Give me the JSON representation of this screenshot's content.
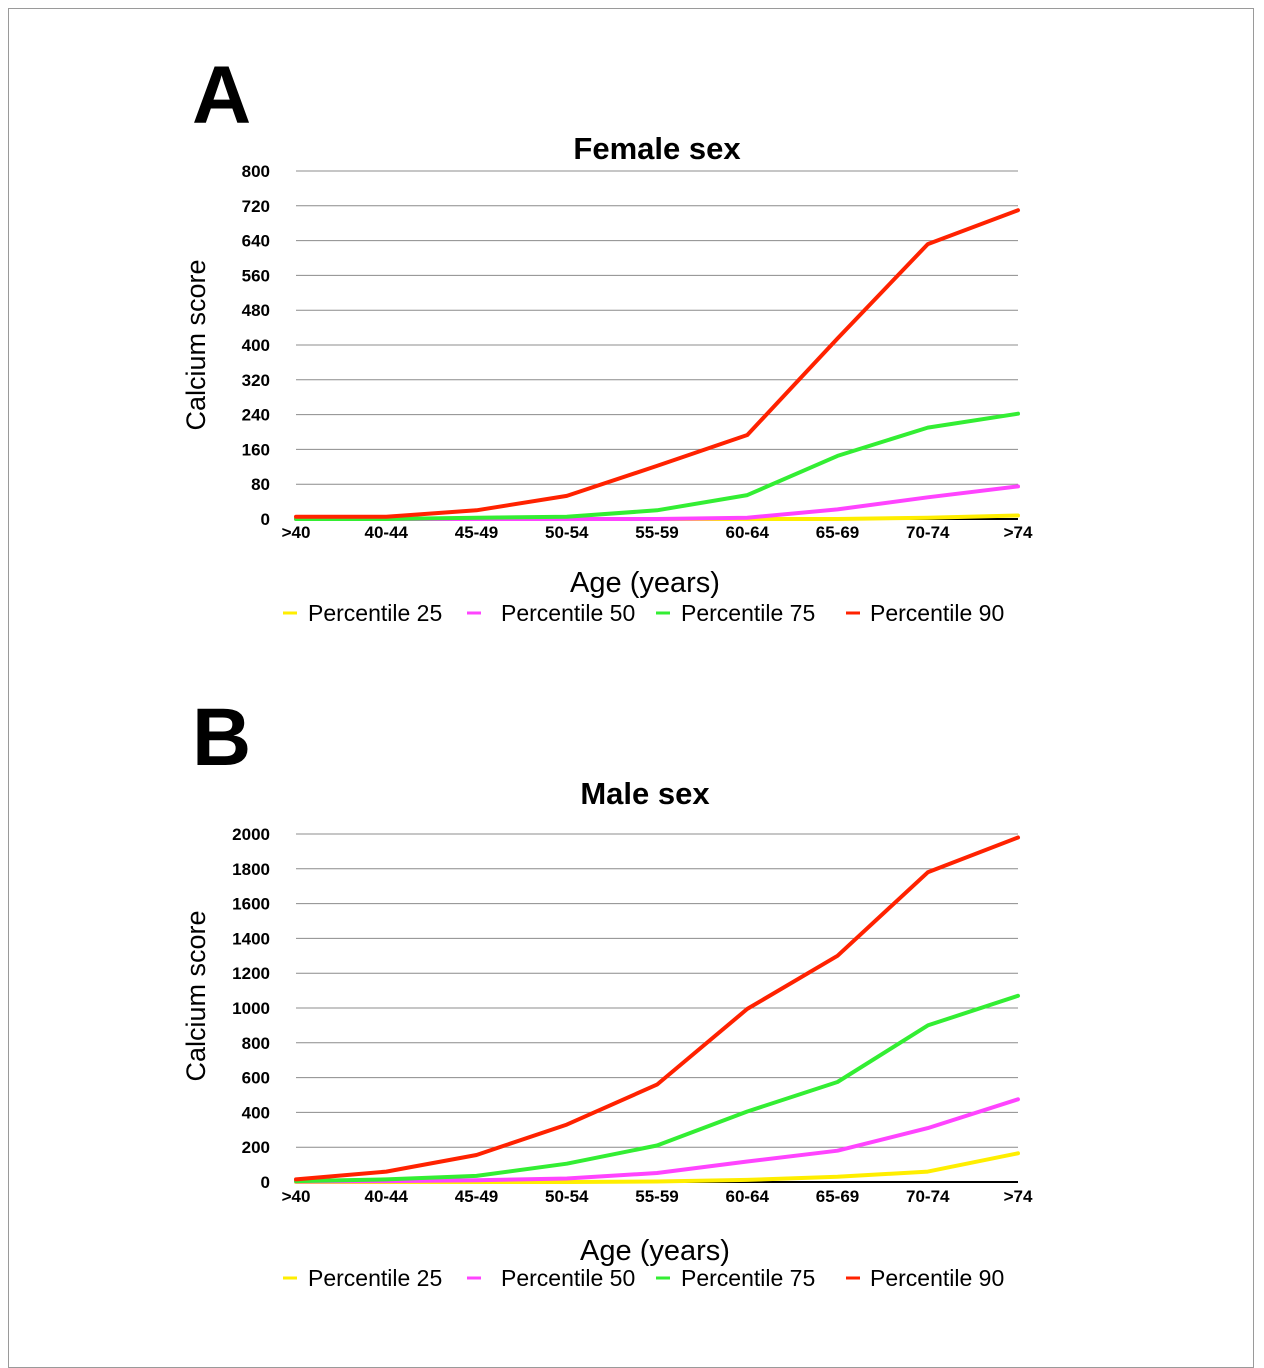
{
  "chart_data": [
    {
      "panel_label": "A",
      "type": "line",
      "title": "Female sex",
      "xlabel": "Age (years)",
      "ylabel": "Calcium score",
      "ylim": [
        0,
        800
      ],
      "yticks": [
        0,
        80,
        160,
        240,
        320,
        400,
        480,
        560,
        640,
        720,
        800
      ],
      "categories": [
        ">40",
        "40-44",
        "45-49",
        "50-54",
        "55-59",
        "60-64",
        "65-69",
        "70-74",
        ">74"
      ],
      "grid": true,
      "legend_position": "bottom",
      "series": [
        {
          "name": "Percentile 25",
          "color": "#ffee00",
          "values": [
            0,
            0,
            0,
            0,
            0,
            0,
            0,
            3,
            8
          ]
        },
        {
          "name": "Percentile 50",
          "color": "#ff44ff",
          "values": [
            0,
            0,
            0,
            0,
            0,
            3,
            22,
            50,
            75
          ]
        },
        {
          "name": "Percentile 75",
          "color": "#33ee33",
          "values": [
            0,
            0,
            3,
            5,
            20,
            55,
            145,
            210,
            242
          ]
        },
        {
          "name": "Percentile 90",
          "color": "#ff2200",
          "values": [
            5,
            5,
            20,
            53,
            122,
            193,
            415,
            632,
            710
          ]
        }
      ]
    },
    {
      "panel_label": "B",
      "type": "line",
      "title": "Male sex",
      "xlabel": "Age (years)",
      "ylabel": "Calcium score",
      "ylim": [
        0,
        2000
      ],
      "yticks": [
        0,
        200,
        400,
        600,
        800,
        1000,
        1200,
        1400,
        1600,
        1800,
        2000
      ],
      "categories": [
        ">40",
        "40-44",
        "45-49",
        "50-54",
        "55-59",
        "60-64",
        "65-69",
        "70-74",
        ">74"
      ],
      "grid": true,
      "legend_position": "bottom",
      "series": [
        {
          "name": "Percentile 25",
          "color": "#ffee00",
          "values": [
            0,
            0,
            0,
            0,
            3,
            12,
            30,
            60,
            165
          ]
        },
        {
          "name": "Percentile 50",
          "color": "#ff44ff",
          "values": [
            3,
            5,
            10,
            20,
            52,
            118,
            180,
            310,
            475
          ]
        },
        {
          "name": "Percentile 75",
          "color": "#33ee33",
          "values": [
            5,
            15,
            35,
            105,
            210,
            405,
            575,
            900,
            1070
          ]
        },
        {
          "name": "Percentile 90",
          "color": "#ff2200",
          "values": [
            15,
            60,
            155,
            330,
            560,
            995,
            1300,
            1780,
            1980
          ]
        }
      ]
    }
  ]
}
